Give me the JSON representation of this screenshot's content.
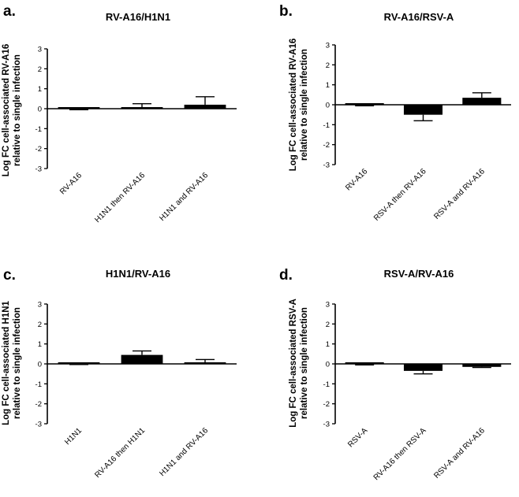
{
  "chart_data": [
    {
      "type": "bar",
      "panel": "a.",
      "title": "RV-A16/H1N1",
      "ylabel_line1": "Log FC cell-associated RV-A16",
      "ylabel_line2": "relative to single infection",
      "categories": [
        "RV-A16",
        "H1N1 then RV-A16",
        "H1N1 and RV-A16"
      ],
      "values": [
        0.0,
        0.05,
        0.2
      ],
      "errors": [
        0.05,
        0.2,
        0.4
      ],
      "error_direction": [
        "down",
        "up",
        "up"
      ],
      "ylim": [
        -3,
        3
      ],
      "yticks": [
        "3",
        "2",
        "1",
        "0",
        "-1",
        "-2",
        "-3"
      ]
    },
    {
      "type": "bar",
      "panel": "b.",
      "title": "RV-A16/RSV-A",
      "ylabel_line1": "Log FC cell-associated RV-A16",
      "ylabel_line2": "relative to single infection",
      "categories": [
        "RV-A16",
        "RSV-A then RV-A16",
        "RSV-A and RV-A16"
      ],
      "values": [
        0.0,
        -0.5,
        0.35
      ],
      "errors": [
        0.05,
        0.3,
        0.25
      ],
      "error_direction": [
        "down",
        "down",
        "up"
      ],
      "ylim": [
        -3,
        3
      ],
      "yticks": [
        "3",
        "2",
        "1",
        "0",
        "-1",
        "-2",
        "-3"
      ]
    },
    {
      "type": "bar",
      "panel": "c.",
      "title": "H1N1/RV-A16",
      "ylabel_line1": "Log FC cell-associated H1N1",
      "ylabel_line2": "relative to single infection",
      "categories": [
        "H1N1",
        "RV-A16 then H1N1",
        "H1N1 and RV-A16"
      ],
      "values": [
        0.0,
        0.45,
        0.0
      ],
      "errors": [
        0.03,
        0.2,
        0.22
      ],
      "error_direction": [
        "down",
        "up",
        "up"
      ],
      "ylim": [
        -3,
        3
      ],
      "yticks": [
        "3",
        "2",
        "1",
        "0",
        "-1",
        "-2",
        "-3"
      ]
    },
    {
      "type": "bar",
      "panel": "d.",
      "title": "RSV-A/RV-A16",
      "ylabel_line1": "Log FC cell-associated RSV-A",
      "ylabel_line2": "relative to single infection",
      "categories": [
        "RSV-A",
        "RV-A16 then RSV-A",
        "RSV-A and RV-A16"
      ],
      "values": [
        0.0,
        -0.35,
        -0.15
      ],
      "errors": [
        0.05,
        0.15,
        0.03
      ],
      "error_direction": [
        "down",
        "down",
        "down"
      ],
      "ylim": [
        -3,
        3
      ],
      "yticks": [
        "3",
        "2",
        "1",
        "0",
        "-1",
        "-2",
        "-3"
      ]
    }
  ]
}
